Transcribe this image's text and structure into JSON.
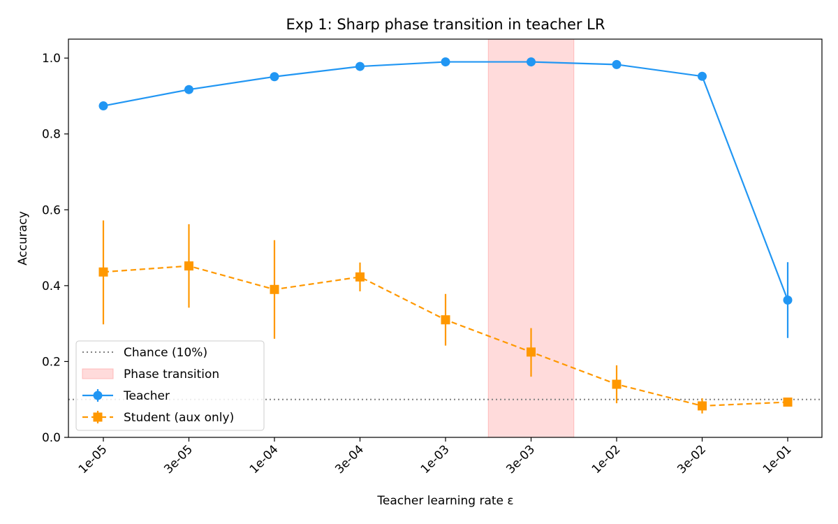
{
  "chart_data": {
    "type": "line",
    "title": "Exp 1: Sharp phase transition in teacher LR",
    "xlabel": "Teacher learning rate ε",
    "ylabel": "Accuracy",
    "categories": [
      "1e-05",
      "3e-05",
      "1e-04",
      "3e-04",
      "1e-03",
      "3e-03",
      "1e-02",
      "3e-02",
      "1e-01"
    ],
    "ylim": [
      0.0,
      1.05
    ],
    "yticks": [
      0.0,
      0.2,
      0.4,
      0.6,
      0.8,
      1.0
    ],
    "ytick_labels": [
      "0.0",
      "0.2",
      "0.4",
      "0.6",
      "0.8",
      "1.0"
    ],
    "grid": false,
    "legend_position": "lower-left",
    "series": [
      {
        "name": "Teacher",
        "style": "solid",
        "marker": "circle",
        "color": "#2196F3",
        "values": [
          0.874,
          0.917,
          0.951,
          0.978,
          0.99,
          0.99,
          0.983,
          0.952,
          0.362
        ],
        "err_low": [
          0,
          0,
          0,
          0,
          0,
          0,
          0,
          0,
          0.262
        ],
        "err_high": [
          0,
          0,
          0,
          0,
          0,
          0,
          0,
          0,
          0.462
        ]
      },
      {
        "name": "Student (aux only)",
        "style": "dashed",
        "marker": "square",
        "color": "#FF9800",
        "values": [
          0.436,
          0.452,
          0.39,
          0.423,
          0.31,
          0.225,
          0.14,
          0.083,
          0.093
        ],
        "err_low": [
          0.298,
          0.342,
          0.26,
          0.385,
          0.242,
          0.16,
          0.09,
          0.063,
          0.088
        ],
        "err_high": [
          0.572,
          0.562,
          0.52,
          0.461,
          0.378,
          0.288,
          0.19,
          0.103,
          0.098
        ]
      }
    ],
    "reference_line": {
      "name": "Chance (10%)",
      "value": 0.1,
      "color": "#808080",
      "style": "dotted"
    },
    "shaded_region": {
      "name": "Phase transition",
      "x_from": 4.5,
      "x_to": 5.5,
      "color": "#ff9999"
    }
  }
}
